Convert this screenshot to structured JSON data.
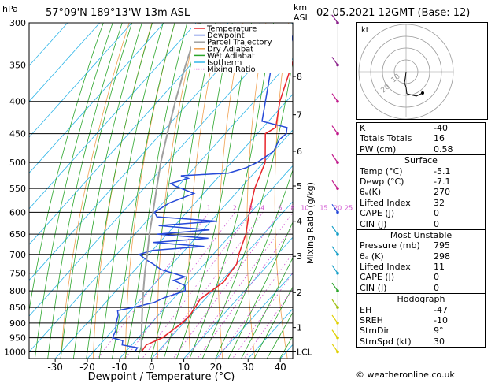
{
  "header": {
    "location": "57°09'N  189°13'W  13m  ASL",
    "datetime": "02.05.2021  12GMT  (Base: 12)",
    "pressure_unit": "hPa",
    "height_unit_top": "km",
    "height_unit_bottom": "ASL"
  },
  "chart_data": {
    "type": "line",
    "title": "",
    "xlabel": "Dewpoint / Temperature (°C)",
    "ylabel": "hPa",
    "right_axis_label": "Mixing Ratio (g/kg)",
    "pressure_levels": [
      300,
      350,
      400,
      450,
      500,
      550,
      600,
      650,
      700,
      750,
      800,
      850,
      900,
      950,
      1000
    ],
    "x_ticks": [
      -30,
      -20,
      -10,
      0,
      10,
      20,
      30,
      40
    ],
    "xlim": [
      -40,
      42
    ],
    "skew": true,
    "height_km_ticks": [
      {
        "label": "8",
        "p": 365
      },
      {
        "label": "7",
        "p": 420
      },
      {
        "label": "6",
        "p": 480
      },
      {
        "label": "5",
        "p": 545
      },
      {
        "label": "4",
        "p": 620
      },
      {
        "label": "3",
        "p": 705
      },
      {
        "label": "2",
        "p": 805
      },
      {
        "label": "1",
        "p": 915
      },
      {
        "label": "LCL",
        "p": 1000
      }
    ],
    "mixing_ratio_labels": [
      "1",
      "2",
      "3",
      "4",
      "6",
      "8",
      "10",
      "15",
      "20",
      "25"
    ],
    "mixing_ratio_values": [
      1,
      2,
      3,
      4,
      6,
      8,
      10,
      15,
      20,
      25
    ],
    "legend": [
      {
        "name": "Temperature",
        "color": "#e8252b"
      },
      {
        "name": "Dewpoint",
        "color": "#2649d8"
      },
      {
        "name": "Parcel Trajectory",
        "color": "#a0a0a0"
      },
      {
        "name": "Dry Adiabat",
        "color": "#f0a050"
      },
      {
        "name": "Wet Adiabat",
        "color": "#2aa52a"
      },
      {
        "name": "Isotherm",
        "color": "#2db5e8"
      },
      {
        "name": "Mixing Ratio",
        "color": "#d04fd0"
      }
    ],
    "series": [
      {
        "name": "Temperature",
        "color": "#e8252b",
        "p": [
          1000,
          975,
          950,
          925,
          900,
          875,
          850,
          825,
          800,
          775,
          750,
          725,
          700,
          650,
          600,
          550,
          500,
          450,
          440,
          400,
          350,
          300
        ],
        "t": [
          -5.1,
          -5.5,
          -2.5,
          -1.5,
          -0.5,
          -0.2,
          -0.8,
          -1.5,
          -0.4,
          1.0,
          0.5,
          0.0,
          -2.0,
          -5.5,
          -10.5,
          -15.5,
          -19.5,
          -27.5,
          -26.0,
          -32.0,
          -38.5,
          -46.0
        ]
      },
      {
        "name": "Dewpoint",
        "color": "#2649d8",
        "p": [
          1000,
          985,
          975,
          960,
          950,
          925,
          900,
          875,
          860,
          850,
          835,
          820,
          800,
          785,
          770,
          760,
          740,
          725,
          715,
          700,
          690,
          680,
          670,
          660,
          650,
          640,
          630,
          620,
          610,
          600,
          580,
          560,
          545,
          540,
          530,
          525,
          520,
          510,
          500,
          480,
          460,
          450,
          440,
          430,
          360,
          350,
          340,
          300
        ],
        "t": [
          -7.1,
          -7.5,
          -13.0,
          -14.0,
          -18.0,
          -19.0,
          -21.0,
          -22.5,
          -24.0,
          -20.0,
          -15.0,
          -13.0,
          -8.5,
          -10.0,
          -15.0,
          -12.5,
          -22.0,
          -26.0,
          -29.0,
          -33.0,
          -30.0,
          -15.0,
          -32.0,
          -16.0,
          -33.0,
          -18.0,
          -35.0,
          -18.0,
          -38.0,
          -40.0,
          -38.0,
          -33.0,
          -41.0,
          -43.0,
          -39.0,
          -42.0,
          -28.0,
          -24.0,
          -22.0,
          -20.0,
          -21.5,
          -21.0,
          -22.5,
          -32.0,
          -43.0,
          -45.0,
          -42.0,
          -49.0
        ]
      },
      {
        "name": "Parcel Trajectory",
        "color": "#a0a0a0",
        "p": [
          1000,
          950,
          900,
          850,
          800,
          750,
          700,
          650,
          600,
          550,
          500,
          450,
          400,
          350,
          300
        ],
        "t": [
          -5.1,
          -9.0,
          -13.0,
          -17.2,
          -21.5,
          -26.0,
          -30.5,
          -35.5,
          -40.5,
          -46.0,
          -52.0,
          -58.0,
          -64.5,
          -71.5,
          -79.0
        ]
      }
    ],
    "wind_barbs_p": [
      300,
      350,
      400,
      450,
      500,
      550,
      600,
      650,
      700,
      750,
      800,
      850,
      900,
      950,
      1000
    ]
  },
  "hodograph": {
    "unit_label": "kt",
    "ring_labels": [
      "10",
      "20"
    ]
  },
  "indices": {
    "general": [
      {
        "label": "K",
        "value": "-40"
      },
      {
        "label": "Totals Totals",
        "value": "16"
      },
      {
        "label": "PW (cm)",
        "value": "0.58"
      }
    ],
    "surface_title": "Surface",
    "surface": [
      {
        "label": "Temp (°C)",
        "value": "-5.1"
      },
      {
        "label": "Dewp (°C)",
        "value": "-7.1"
      },
      {
        "label": "θₑ(K)",
        "value": "270"
      },
      {
        "label": "Lifted Index",
        "value": "32"
      },
      {
        "label": "CAPE (J)",
        "value": "0"
      },
      {
        "label": "CIN (J)",
        "value": "0"
      }
    ],
    "unstable_title": "Most Unstable",
    "unstable": [
      {
        "label": "Pressure (mb)",
        "value": "795"
      },
      {
        "label": "θₑ (K)",
        "value": "298"
      },
      {
        "label": "Lifted Index",
        "value": "11"
      },
      {
        "label": "CAPE (J)",
        "value": "0"
      },
      {
        "label": "CIN (J)",
        "value": "0"
      }
    ],
    "hodograph_title": "Hodograph",
    "hodo_params": [
      {
        "label": "EH",
        "value": "-47"
      },
      {
        "label": "SREH",
        "value": "-10"
      },
      {
        "label": "StmDir",
        "value": "9°"
      },
      {
        "label": "StmSpd (kt)",
        "value": "30"
      }
    ]
  },
  "footer": {
    "copyright": "© weatheronline.co.uk"
  }
}
